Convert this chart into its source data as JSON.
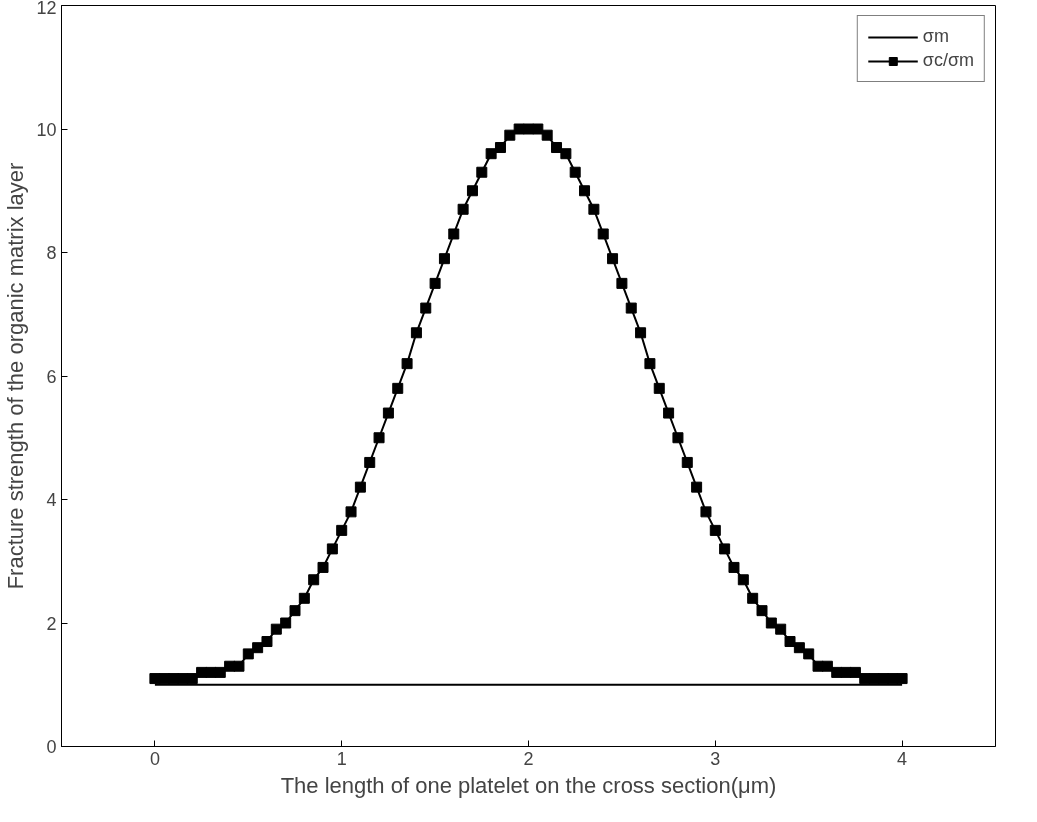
{
  "chart_data": {
    "type": "line",
    "xlabel": "The length of one platelet on the cross section(μm)",
    "ylabel": "Fracture strength of the organic matrix layer",
    "xlim": [
      -0.5,
      4.5
    ],
    "xticks": [
      0,
      1,
      2,
      3,
      4
    ],
    "ylim": [
      0,
      12
    ],
    "yticks": [
      0,
      2,
      4,
      6,
      8,
      10,
      12
    ],
    "grid": false,
    "legend": "top right",
    "series": [
      {
        "name": "σm",
        "color": "#000000",
        "marker": "none",
        "x": [
          0,
          4
        ],
        "values": [
          1,
          1
        ]
      },
      {
        "name": "σc/σm",
        "color": "#000000",
        "marker": "square",
        "x": [
          0,
          0.05,
          0.1,
          0.15,
          0.2,
          0.25,
          0.3,
          0.35,
          0.4,
          0.45,
          0.5,
          0.55,
          0.6,
          0.65,
          0.7,
          0.75,
          0.8,
          0.85,
          0.9,
          0.95,
          1,
          1.05,
          1.1,
          1.15,
          1.2,
          1.25,
          1.3,
          1.35,
          1.4,
          1.45,
          1.5,
          1.55,
          1.6,
          1.65,
          1.7,
          1.75,
          1.8,
          1.85,
          1.9,
          1.95,
          2,
          2.05,
          2.1,
          2.15,
          2.2,
          2.25,
          2.3,
          2.35,
          2.4,
          2.45,
          2.5,
          2.55,
          2.6,
          2.65,
          2.7,
          2.75,
          2.8,
          2.85,
          2.9,
          2.95,
          3,
          3.05,
          3.1,
          3.15,
          3.2,
          3.25,
          3.3,
          3.35,
          3.4,
          3.45,
          3.5,
          3.55,
          3.6,
          3.65,
          3.7,
          3.75,
          3.8,
          3.85,
          3.9,
          3.95,
          4
        ],
        "values": [
          1.1,
          1.1,
          1.1,
          1.1,
          1.1,
          1.2,
          1.2,
          1.2,
          1.3,
          1.3,
          1.5,
          1.6,
          1.7,
          1.9,
          2.0,
          2.2,
          2.4,
          2.7,
          2.9,
          3.2,
          3.5,
          3.8,
          4.2,
          4.6,
          5.0,
          5.4,
          5.8,
          6.2,
          6.7,
          7.1,
          7.5,
          7.9,
          8.3,
          8.7,
          9.0,
          9.3,
          9.6,
          9.7,
          9.9,
          10.0,
          10.0,
          10.0,
          9.9,
          9.7,
          9.6,
          9.3,
          9.0,
          8.7,
          8.3,
          7.9,
          7.5,
          7.1,
          6.7,
          6.2,
          5.8,
          5.4,
          5.0,
          4.6,
          4.2,
          3.8,
          3.5,
          3.2,
          2.9,
          2.7,
          2.4,
          2.2,
          2.0,
          1.9,
          1.7,
          1.6,
          1.5,
          1.3,
          1.3,
          1.2,
          1.2,
          1.2,
          1.1,
          1.1,
          1.1,
          1.1,
          1.1
        ]
      }
    ]
  }
}
